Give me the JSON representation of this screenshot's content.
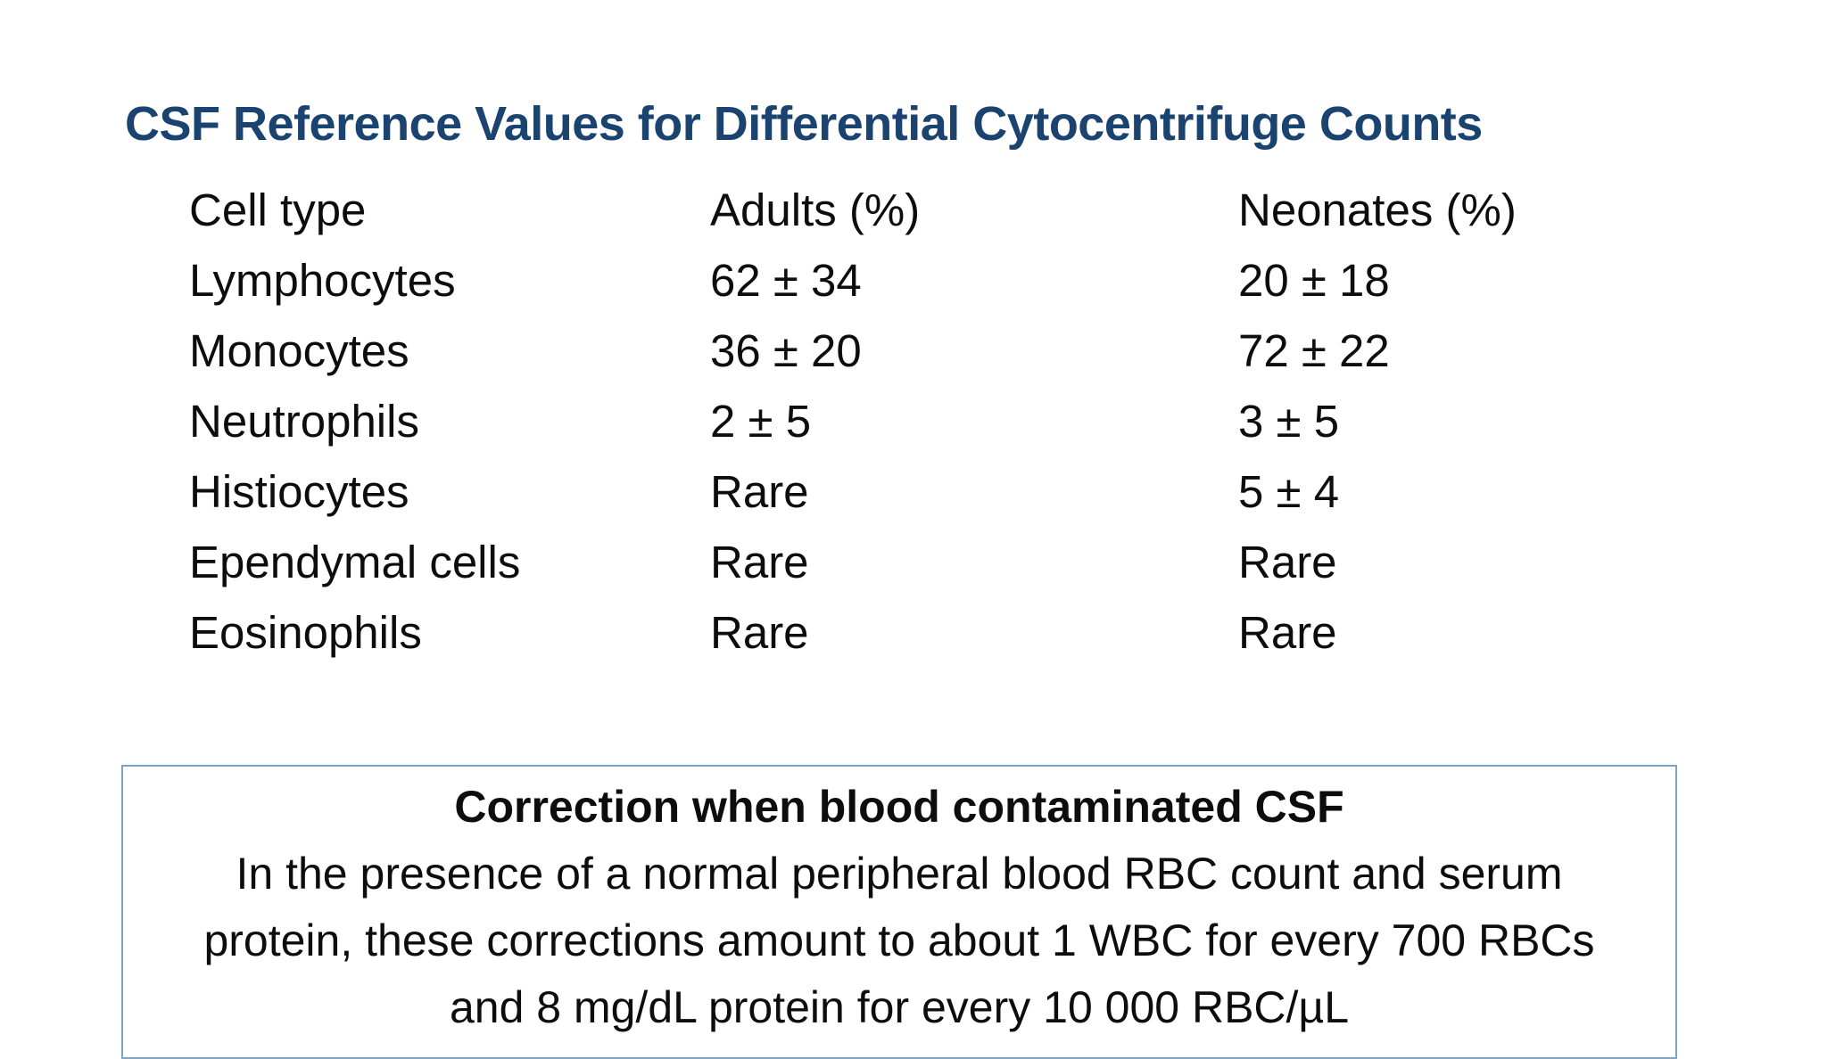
{
  "slide": {
    "title": "CSF Reference Values for Differential Cytocentrifuge Counts"
  },
  "table": {
    "columns": [
      "Cell type",
      "Adults (%)",
      "Neonates (%)"
    ],
    "rows": [
      [
        "Lymphocytes",
        "62 ± 34",
        "20 ± 18"
      ],
      [
        "Monocytes",
        "36 ± 20",
        "72 ± 22"
      ],
      [
        "Neutrophils",
        "2 ± 5",
        "3 ± 5"
      ],
      [
        "Histiocytes",
        "Rare",
        "5 ± 4"
      ],
      [
        "Ependymal cells",
        "Rare",
        "Rare"
      ],
      [
        "Eosinophils",
        "Rare",
        "Rare"
      ]
    ]
  },
  "correction_box": {
    "heading": "Correction when blood contaminated CSF",
    "lines": [
      "In the presence of a normal peripheral blood RBC count and serum",
      "protein, these corrections amount to about 1 WBC for every 700 RBCs",
      "and 8 mg/dL protein for every 10 000 RBC/µL"
    ]
  },
  "colors": {
    "title": "#1b4370",
    "body_text": "#0d0d0d",
    "box_border": "#7ba6c9",
    "background": "#ffffff"
  }
}
